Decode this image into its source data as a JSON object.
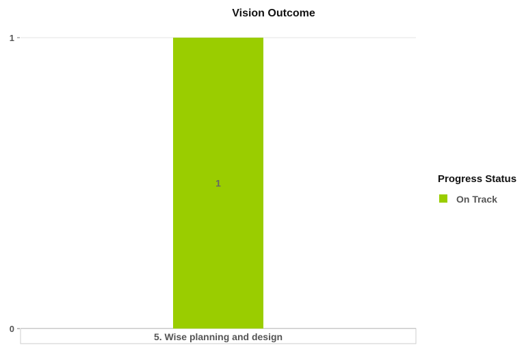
{
  "chart_data": {
    "type": "bar",
    "title": "Vision Outcome",
    "categories": [
      "5.  Wise planning and design"
    ],
    "series": [
      {
        "name": "On Track",
        "values": [
          1
        ],
        "color": "#9ACD00"
      }
    ],
    "ylim": [
      0,
      1
    ],
    "yticks": [
      "0",
      "1"
    ],
    "data_labels": [
      "1"
    ],
    "grid": true,
    "legend": {
      "title": "Progress Status",
      "placement": "right",
      "items": [
        "On Track"
      ]
    }
  }
}
